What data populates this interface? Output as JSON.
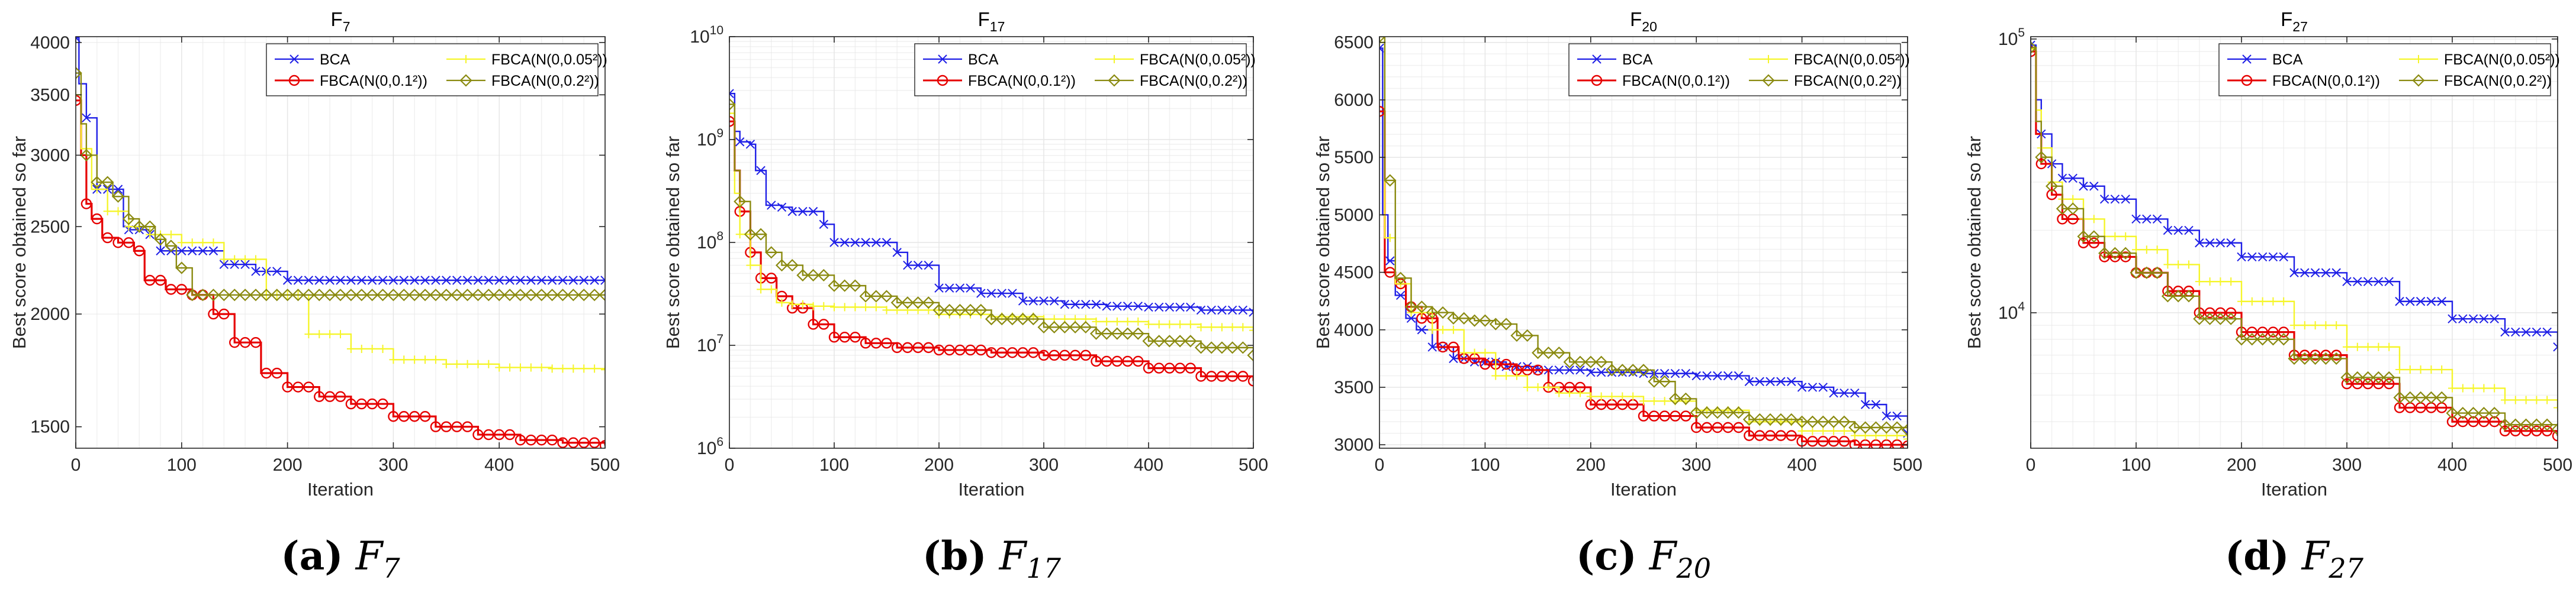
{
  "figure": {
    "xlabel": "Iteration",
    "ylabel": "Best score obtained so far",
    "colors": {
      "BCA": "#1f1fe6",
      "FBCA(N(0,0.1²))": "#e60000",
      "FBCA(N(0,0.05²))": "#f5f52a",
      "FBCA(N(0,0.2²))": "#8a8a10",
      "grid": "#e6e6e6",
      "axis": "#262626"
    },
    "marker_styles": {
      "BCA": "x",
      "FBCA(N(0,0.1²))": "circle",
      "FBCA(N(0,0.05²))": "plus",
      "FBCA(N(0,0.2²))": "diamond"
    }
  },
  "chart_data": [
    {
      "type": "line",
      "panel_label": "(a)",
      "caption_var": "F",
      "caption_sub": "7",
      "title_main": "F",
      "title_sub": "7",
      "xlabel": "Iteration",
      "ylabel": "Best score obtained so far",
      "yscale": "log",
      "xlim": [
        0,
        500
      ],
      "ylim": [
        1420,
        4060
      ],
      "xticks": [
        0,
        100,
        200,
        300,
        400,
        500
      ],
      "yticks": [
        1500,
        2000,
        2500,
        3000,
        3500,
        4000
      ],
      "ytick_labels": [
        "1500",
        "2000",
        "2500",
        "3000",
        "3500",
        "4000"
      ],
      "legend_position": "top-right",
      "series": [
        {
          "name": "BCA",
          "x": [
            0,
            3,
            10,
            20,
            45,
            50,
            70,
            80,
            140,
            170,
            200,
            500
          ],
          "y": [
            4050,
            3600,
            3300,
            2750,
            2500,
            2480,
            2450,
            2350,
            2270,
            2230,
            2180,
            2180
          ]
        },
        {
          "name": "FBCA(N(0,0.1²))",
          "x": [
            0,
            5,
            10,
            15,
            25,
            40,
            55,
            65,
            85,
            110,
            130,
            150,
            175,
            200,
            230,
            260,
            300,
            340,
            380,
            420,
            460,
            500
          ],
          "y": [
            3450,
            3000,
            2650,
            2550,
            2430,
            2400,
            2350,
            2180,
            2130,
            2100,
            2000,
            1860,
            1720,
            1660,
            1620,
            1590,
            1540,
            1500,
            1470,
            1450,
            1440,
            1430
          ]
        },
        {
          "name": "FBCA(N(0,0.05²))",
          "x": [
            0,
            5,
            15,
            30,
            50,
            70,
            100,
            140,
            180,
            220,
            260,
            300,
            350,
            400,
            450,
            500
          ],
          "y": [
            3500,
            3050,
            2750,
            2600,
            2500,
            2450,
            2400,
            2300,
            2100,
            1900,
            1830,
            1780,
            1760,
            1745,
            1740,
            1735
          ]
        },
        {
          "name": "FBCA(N(0,0.2²))",
          "x": [
            0,
            5,
            10,
            20,
            35,
            50,
            60,
            75,
            85,
            95,
            110,
            500
          ],
          "y": [
            3700,
            3250,
            3000,
            2800,
            2700,
            2550,
            2500,
            2420,
            2380,
            2250,
            2100,
            2100
          ]
        }
      ]
    },
    {
      "type": "line",
      "panel_label": "(b)",
      "caption_var": "F",
      "caption_sub": "17",
      "title_main": "F",
      "title_sub": "17",
      "xlabel": "Iteration",
      "ylabel": "Best score obtained so far",
      "yscale": "log",
      "xlim": [
        0,
        500
      ],
      "ylim": [
        1000000,
        10000000000
      ],
      "xticks": [
        0,
        100,
        200,
        300,
        400,
        500
      ],
      "yticks": [
        1000000,
        10000000,
        100000000,
        1000000000,
        10000000000
      ],
      "ytick_base": "10",
      "ytick_exps": [
        "6",
        "7",
        "8",
        "9",
        "10"
      ],
      "legend_position": "top-right",
      "series": [
        {
          "name": "BCA",
          "x": [
            0,
            5,
            10,
            20,
            25,
            35,
            50,
            60,
            90,
            100,
            140,
            160,
            170,
            200,
            240,
            280,
            320,
            360,
            400,
            450,
            500
          ],
          "y": [
            2800000000,
            1200000000,
            950000000,
            900000000,
            500000000,
            230000000,
            220000000,
            200000000,
            150000000,
            100000000,
            100000000,
            80000000,
            60000000,
            36000000,
            32000000,
            27000000,
            25000000,
            24000000,
            23500000,
            22000000,
            21000000
          ]
        },
        {
          "name": "FBCA(N(0,0.1²))",
          "x": [
            0,
            5,
            10,
            20,
            30,
            45,
            60,
            80,
            100,
            130,
            160,
            200,
            250,
            300,
            350,
            400,
            450,
            500
          ],
          "y": [
            1500000000,
            500000000,
            200000000,
            80000000,
            45000000,
            30000000,
            23000000,
            16000000,
            12000000,
            10500000,
            9500000,
            9000000,
            8500000,
            8000000,
            7000000,
            6000000,
            5000000,
            4500000
          ]
        },
        {
          "name": "FBCA(N(0,0.05²))",
          "x": [
            0,
            5,
            10,
            20,
            30,
            45,
            60,
            80,
            100,
            150,
            200,
            250,
            300,
            350,
            400,
            450,
            500
          ],
          "y": [
            1800000000,
            300000000,
            120000000,
            60000000,
            35000000,
            26000000,
            25000000,
            24000000,
            23500000,
            22000000,
            20000000,
            19000000,
            18000000,
            17000000,
            16000000,
            15000000,
            14000000
          ]
        },
        {
          "name": "FBCA(N(0,0.2²))",
          "x": [
            0,
            5,
            10,
            20,
            35,
            50,
            70,
            100,
            130,
            160,
            200,
            250,
            300,
            350,
            400,
            450,
            500
          ],
          "y": [
            2200000000,
            500000000,
            250000000,
            120000000,
            80000000,
            60000000,
            48000000,
            38000000,
            30000000,
            26000000,
            22000000,
            18000000,
            15000000,
            13000000,
            11000000,
            9500000,
            8000000
          ]
        }
      ]
    },
    {
      "type": "line",
      "panel_label": "(c)",
      "caption_var": "F",
      "caption_sub": "20",
      "title_main": "F",
      "title_sub": "20",
      "xlabel": "Iteration",
      "ylabel": "Best score obtained so far",
      "yscale": "linear",
      "xlim": [
        0,
        500
      ],
      "ylim": [
        2970,
        6550
      ],
      "xticks": [
        0,
        100,
        200,
        300,
        400,
        500
      ],
      "yticks": [
        3000,
        3500,
        4000,
        4500,
        5000,
        5500,
        6000,
        6500
      ],
      "ytick_labels": [
        "3000",
        "3500",
        "4000",
        "4500",
        "5000",
        "5500",
        "6000",
        "6500"
      ],
      "legend_position": "top-right",
      "series": [
        {
          "name": "BCA",
          "x": [
            0,
            3,
            8,
            15,
            25,
            35,
            50,
            70,
            90,
            120,
            150,
            200,
            250,
            300,
            350,
            400,
            430,
            460,
            480,
            500
          ],
          "y": [
            6450,
            5000,
            4600,
            4300,
            4100,
            4000,
            3850,
            3750,
            3720,
            3680,
            3650,
            3630,
            3620,
            3600,
            3550,
            3500,
            3450,
            3350,
            3250,
            3100
          ]
        },
        {
          "name": "FBCA(N(0,0.1²))",
          "x": [
            0,
            5,
            15,
            25,
            40,
            55,
            75,
            100,
            130,
            160,
            200,
            250,
            300,
            350,
            400,
            450,
            500
          ],
          "y": [
            5900,
            4500,
            4400,
            4200,
            4100,
            3850,
            3750,
            3700,
            3650,
            3500,
            3350,
            3250,
            3150,
            3080,
            3030,
            3000,
            2990
          ]
        },
        {
          "name": "FBCA(N(0,0.05²))",
          "x": [
            0,
            5,
            15,
            30,
            50,
            80,
            110,
            140,
            170,
            200,
            250,
            300,
            350,
            400,
            450,
            500
          ],
          "y": [
            6500,
            4800,
            4400,
            4150,
            4000,
            3800,
            3600,
            3500,
            3450,
            3420,
            3380,
            3300,
            3200,
            3120,
            3080,
            3050
          ]
        },
        {
          "name": "FBCA(N(0,0.2²))",
          "x": [
            0,
            5,
            15,
            30,
            50,
            70,
            90,
            110,
            130,
            150,
            180,
            220,
            260,
            280,
            300,
            350,
            400,
            450,
            500
          ],
          "y": [
            6550,
            5300,
            4450,
            4200,
            4150,
            4100,
            4080,
            4050,
            3950,
            3800,
            3720,
            3650,
            3550,
            3400,
            3280,
            3220,
            3200,
            3150,
            3130
          ]
        }
      ]
    },
    {
      "type": "line",
      "panel_label": "(d)",
      "caption_var": "F",
      "caption_sub": "27",
      "title_main": "F",
      "title_sub": "27",
      "xlabel": "Iteration",
      "ylabel": "Best score obtained so far",
      "yscale": "log",
      "xlim": [
        0,
        500
      ],
      "ylim": [
        3200,
        102000
      ],
      "xticks": [
        0,
        100,
        200,
        300,
        400,
        500
      ],
      "yticks": [
        10000,
        100000
      ],
      "ytick_base": "10",
      "ytick_exps": [
        "4",
        "5"
      ],
      "legend_position": "top-right",
      "series": [
        {
          "name": "BCA",
          "x": [
            0,
            5,
            10,
            20,
            30,
            50,
            70,
            100,
            130,
            160,
            200,
            250,
            300,
            350,
            400,
            450,
            500
          ],
          "y": [
            95000,
            60000,
            45000,
            35000,
            31000,
            29000,
            26000,
            22000,
            20000,
            18000,
            16000,
            14000,
            13000,
            11000,
            9500,
            8500,
            7500
          ]
        },
        {
          "name": "FBCA(N(0,0.1²))",
          "x": [
            0,
            5,
            10,
            20,
            30,
            50,
            70,
            100,
            130,
            160,
            200,
            250,
            300,
            350,
            400,
            450,
            500
          ],
          "y": [
            90000,
            45000,
            35000,
            27000,
            22000,
            18000,
            16000,
            14000,
            12000,
            10000,
            8500,
            7000,
            5500,
            4500,
            4000,
            3700,
            3550
          ]
        },
        {
          "name": "FBCA(N(0,0.05²))",
          "x": [
            0,
            5,
            10,
            20,
            30,
            50,
            70,
            100,
            130,
            160,
            200,
            250,
            300,
            350,
            400,
            450,
            500
          ],
          "y": [
            92000,
            55000,
            40000,
            30000,
            26000,
            22000,
            19000,
            17000,
            15000,
            13000,
            11000,
            9000,
            7500,
            6200,
            5300,
            4800,
            4500
          ]
        },
        {
          "name": "FBCA(N(0,0.2²))",
          "x": [
            0,
            5,
            10,
            20,
            30,
            50,
            70,
            100,
            130,
            160,
            200,
            250,
            300,
            350,
            400,
            450,
            500
          ],
          "y": [
            93000,
            50000,
            37000,
            29000,
            24000,
            19000,
            16500,
            14000,
            11500,
            9500,
            8000,
            6800,
            5800,
            4900,
            4300,
            3900,
            3750
          ]
        }
      ]
    }
  ]
}
